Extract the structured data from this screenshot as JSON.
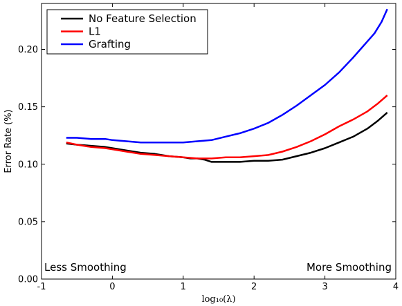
{
  "chart_data": {
    "type": "line",
    "xlabel": "log₁₀(λ)",
    "ylabel": "Error Rate (%)",
    "xlim": [
      -1,
      4
    ],
    "ylim": [
      0.0,
      0.24
    ],
    "xticks": [
      "-1",
      "0",
      "1",
      "2",
      "3",
      "4"
    ],
    "yticks": [
      "0.00",
      "0.05",
      "0.10",
      "0.15",
      "0.20"
    ],
    "grid": false,
    "legend_position": "top-left",
    "annotations": {
      "left": "Less Smoothing",
      "right": "More Smoothing"
    },
    "series": [
      {
        "name": "No Feature Selection",
        "color": "#000000",
        "x": [
          -0.65,
          -0.5,
          -0.3,
          -0.1,
          0.0,
          0.2,
          0.4,
          0.6,
          0.8,
          1.0,
          1.1,
          1.2,
          1.3,
          1.4,
          1.6,
          1.8,
          2.0,
          2.2,
          2.4,
          2.6,
          2.8,
          3.0,
          3.2,
          3.4,
          3.6,
          3.75,
          3.88
        ],
        "y": [
          0.118,
          0.117,
          0.116,
          0.115,
          0.114,
          0.112,
          0.11,
          0.109,
          0.107,
          0.106,
          0.105,
          0.105,
          0.104,
          0.102,
          0.102,
          0.102,
          0.103,
          0.103,
          0.104,
          0.107,
          0.11,
          0.114,
          0.119,
          0.124,
          0.131,
          0.138,
          0.145
        ]
      },
      {
        "name": "L1",
        "color": "#ff0000",
        "x": [
          -0.65,
          -0.5,
          -0.3,
          -0.1,
          0.0,
          0.2,
          0.4,
          0.6,
          0.8,
          1.0,
          1.2,
          1.4,
          1.6,
          1.8,
          2.0,
          2.2,
          2.4,
          2.6,
          2.8,
          3.0,
          3.2,
          3.4,
          3.6,
          3.75,
          3.88
        ],
        "y": [
          0.119,
          0.117,
          0.115,
          0.114,
          0.113,
          0.111,
          0.109,
          0.108,
          0.107,
          0.106,
          0.105,
          0.105,
          0.106,
          0.106,
          0.107,
          0.108,
          0.111,
          0.115,
          0.12,
          0.126,
          0.133,
          0.139,
          0.146,
          0.153,
          0.16
        ]
      },
      {
        "name": "Grafting",
        "color": "#0000ff",
        "x": [
          -0.65,
          -0.5,
          -0.3,
          -0.1,
          0.0,
          0.2,
          0.4,
          0.6,
          0.8,
          1.0,
          1.2,
          1.4,
          1.6,
          1.8,
          2.0,
          2.2,
          2.4,
          2.6,
          2.8,
          3.0,
          3.2,
          3.4,
          3.5,
          3.6,
          3.7,
          3.8,
          3.88
        ],
        "y": [
          0.123,
          0.123,
          0.122,
          0.122,
          0.121,
          0.12,
          0.119,
          0.119,
          0.119,
          0.119,
          0.12,
          0.121,
          0.124,
          0.127,
          0.131,
          0.136,
          0.143,
          0.151,
          0.16,
          0.169,
          0.18,
          0.193,
          0.2,
          0.207,
          0.214,
          0.224,
          0.235
        ]
      }
    ]
  }
}
